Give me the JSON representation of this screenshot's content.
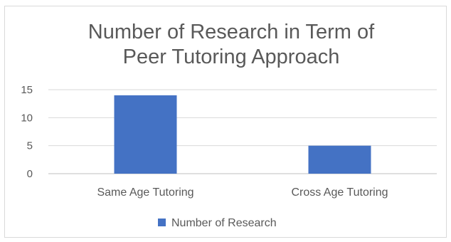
{
  "chart_data": {
    "type": "bar",
    "title_lines": [
      "Number of Research in Term of",
      "Peer Tutoring Approach"
    ],
    "categories": [
      "Same Age Tutoring",
      "Cross Age Tutoring"
    ],
    "series": [
      {
        "name": "Number of Research",
        "values": [
          14,
          5
        ],
        "color": "#4472c4"
      }
    ],
    "yticks": [
      "0",
      "5",
      "10",
      "15"
    ],
    "ylim": [
      0,
      15
    ],
    "grid": true,
    "legend": "bottom",
    "gridline_color": "#d9d9d9",
    "axis_color": "#bfbfbf"
  }
}
